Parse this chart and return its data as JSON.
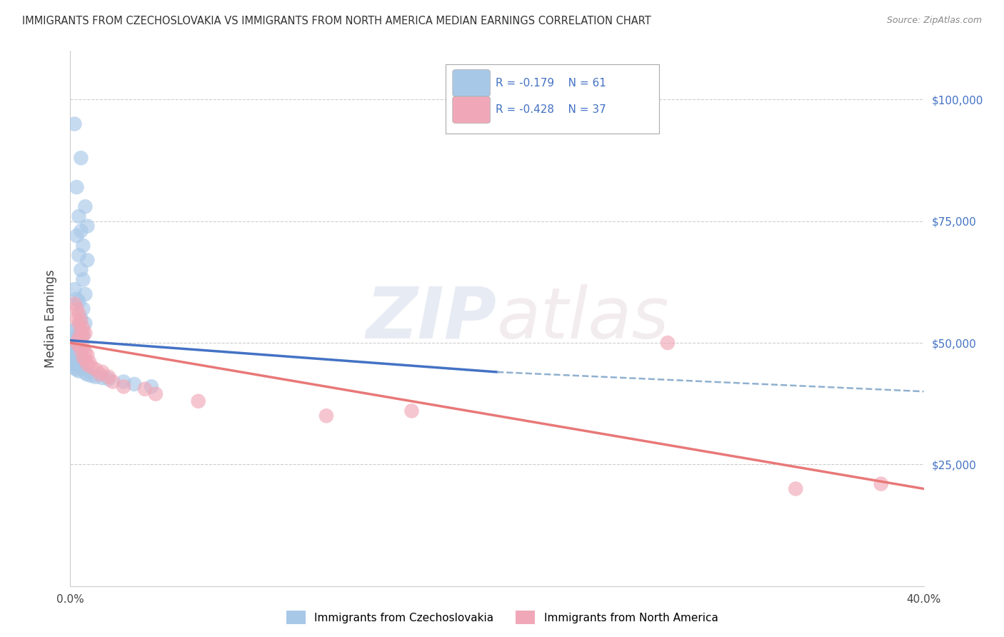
{
  "title": "IMMIGRANTS FROM CZECHOSLOVAKIA VS IMMIGRANTS FROM NORTH AMERICA MEDIAN EARNINGS CORRELATION CHART",
  "source": "Source: ZipAtlas.com",
  "ylabel": "Median Earnings",
  "legend_label_blue": "Immigrants from Czechoslovakia",
  "legend_label_pink": "Immigrants from North America",
  "legend_r_blue": "R = -0.179",
  "legend_n_blue": "N = 61",
  "legend_r_pink": "R = -0.428",
  "legend_n_pink": "N = 37",
  "xlim": [
    0.0,
    0.4
  ],
  "ylim": [
    0,
    110000
  ],
  "yticks": [
    0,
    25000,
    50000,
    75000,
    100000
  ],
  "ytick_labels": [
    "",
    "$25,000",
    "$50,000",
    "$75,000",
    "$100,000"
  ],
  "xtick_labels": [
    "0.0%",
    "40.0%"
  ],
  "background_color": "#ffffff",
  "grid_color": "#c8c8c8",
  "color_blue": "#a8c8e8",
  "color_pink": "#f0a8b8",
  "line_color_blue": "#4472c4",
  "line_color_pink": "#e87878",
  "line_color_dashed": "#90b0d0",
  "watermark_zip": "ZIP",
  "watermark_atlas": "atlas",
  "blue_dots": [
    [
      0.002,
      95000
    ],
    [
      0.005,
      88000
    ],
    [
      0.003,
      82000
    ],
    [
      0.007,
      78000
    ],
    [
      0.004,
      76000
    ],
    [
      0.008,
      74000
    ],
    [
      0.005,
      73000
    ],
    [
      0.003,
      72000
    ],
    [
      0.006,
      70000
    ],
    [
      0.004,
      68000
    ],
    [
      0.008,
      67000
    ],
    [
      0.005,
      65000
    ],
    [
      0.006,
      63000
    ],
    [
      0.002,
      61000
    ],
    [
      0.007,
      60000
    ],
    [
      0.003,
      59000
    ],
    [
      0.004,
      58500
    ],
    [
      0.006,
      57000
    ],
    [
      0.005,
      55000
    ],
    [
      0.007,
      54000
    ],
    [
      0.003,
      53000
    ],
    [
      0.002,
      52500
    ],
    [
      0.004,
      52000
    ],
    [
      0.006,
      51500
    ],
    [
      0.005,
      51000
    ],
    [
      0.001,
      50800
    ],
    [
      0.003,
      50500
    ],
    [
      0.002,
      50200
    ],
    [
      0.004,
      50000
    ],
    [
      0.001,
      49800
    ],
    [
      0.002,
      49500
    ],
    [
      0.003,
      49200
    ],
    [
      0.001,
      49000
    ],
    [
      0.002,
      48800
    ],
    [
      0.003,
      48500
    ],
    [
      0.001,
      48200
    ],
    [
      0.002,
      48000
    ],
    [
      0.003,
      47800
    ],
    [
      0.004,
      47500
    ],
    [
      0.002,
      47200
    ],
    [
      0.003,
      47000
    ],
    [
      0.004,
      46800
    ],
    [
      0.002,
      46500
    ],
    [
      0.003,
      46200
    ],
    [
      0.001,
      46000
    ],
    [
      0.002,
      45800
    ],
    [
      0.004,
      45500
    ],
    [
      0.003,
      45200
    ],
    [
      0.005,
      45000
    ],
    [
      0.002,
      44800
    ],
    [
      0.003,
      44500
    ],
    [
      0.004,
      44200
    ],
    [
      0.007,
      43800
    ],
    [
      0.008,
      43500
    ],
    [
      0.01,
      43200
    ],
    [
      0.012,
      43000
    ],
    [
      0.015,
      42800
    ],
    [
      0.018,
      42500
    ],
    [
      0.025,
      42000
    ],
    [
      0.03,
      41500
    ],
    [
      0.038,
      41000
    ]
  ],
  "pink_dots": [
    [
      0.002,
      58000
    ],
    [
      0.003,
      57000
    ],
    [
      0.004,
      56000
    ],
    [
      0.003,
      55000
    ],
    [
      0.005,
      54500
    ],
    [
      0.004,
      54000
    ],
    [
      0.006,
      53000
    ],
    [
      0.005,
      52500
    ],
    [
      0.007,
      52000
    ],
    [
      0.006,
      51500
    ],
    [
      0.004,
      51000
    ],
    [
      0.005,
      50500
    ],
    [
      0.003,
      50000
    ],
    [
      0.004,
      49500
    ],
    [
      0.006,
      49000
    ],
    [
      0.005,
      48500
    ],
    [
      0.007,
      48000
    ],
    [
      0.008,
      47500
    ],
    [
      0.006,
      47000
    ],
    [
      0.007,
      46500
    ],
    [
      0.009,
      46000
    ],
    [
      0.008,
      45500
    ],
    [
      0.01,
      45000
    ],
    [
      0.012,
      44500
    ],
    [
      0.015,
      44000
    ],
    [
      0.014,
      43500
    ],
    [
      0.018,
      43000
    ],
    [
      0.02,
      42000
    ],
    [
      0.025,
      41000
    ],
    [
      0.035,
      40500
    ],
    [
      0.04,
      39500
    ],
    [
      0.06,
      38000
    ],
    [
      0.12,
      35000
    ],
    [
      0.28,
      50000
    ],
    [
      0.16,
      36000
    ],
    [
      0.38,
      21000
    ],
    [
      0.34,
      20000
    ]
  ],
  "blue_line": [
    [
      0.0,
      50500
    ],
    [
      0.2,
      44000
    ]
  ],
  "pink_line": [
    [
      0.0,
      50000
    ],
    [
      0.4,
      20000
    ]
  ],
  "dashed_line": [
    [
      0.2,
      44000
    ],
    [
      0.4,
      40000
    ]
  ]
}
